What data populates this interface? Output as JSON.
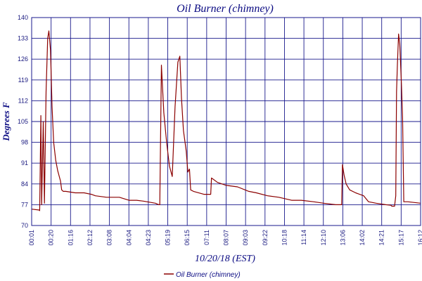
{
  "chart_data": {
    "type": "line",
    "title": "Oil Burner (chimney)",
    "xlabel": "10/20/18 (EST)",
    "ylabel": "Degrees F",
    "ylim": [
      70,
      140
    ],
    "yticks": [
      70,
      77,
      84,
      91,
      98,
      105,
      112,
      119,
      126,
      133,
      140
    ],
    "ytick_labels": [
      "70",
      "77",
      "84",
      "91",
      "98",
      "105",
      "112",
      "119",
      "126",
      "133",
      "140"
    ],
    "xtick_labels": [
      "00:01",
      "00:20",
      "01:16",
      "02:12",
      "03:08",
      "04:04",
      "04:23",
      "05:19",
      "06:15",
      "07:11",
      "08:07",
      "09:03",
      "09:22",
      "10:18",
      "11:14",
      "12:10",
      "13:06",
      "14:02",
      "14:21",
      "15:17",
      "16:12"
    ],
    "grid": true,
    "legend_position": "bottom",
    "colors": {
      "series": "#8b0000",
      "grid": "#1a1a8c",
      "text": "#0a0a82"
    },
    "series": [
      {
        "name": "Oil Burner (chimney)",
        "x": [
          "00:01",
          "00:20",
          "00:21",
          "00:24",
          "00:26",
          "00:30",
          "00:33",
          "00:37",
          "00:41",
          "00:44",
          "00:48",
          "00:52",
          "00:56",
          "01:01",
          "01:06",
          "01:09",
          "01:13",
          "01:16",
          "01:20",
          "01:26",
          "01:50",
          "02:12",
          "02:30",
          "02:40",
          "03:08",
          "03:40",
          "04:04",
          "04:23",
          "04:40",
          "05:10",
          "05:15",
          "05:19",
          "05:21",
          "05:25",
          "05:31",
          "05:38",
          "05:45",
          "05:52",
          "05:59",
          "06:06",
          "06:11",
          "06:15",
          "06:20",
          "06:27",
          "06:31",
          "06:35",
          "06:38",
          "06:45",
          "07:11",
          "07:28",
          "07:30",
          "07:45",
          "08:07",
          "08:35",
          "09:03",
          "09:22",
          "09:50",
          "10:18",
          "10:50",
          "11:14",
          "11:45",
          "12:10",
          "12:40",
          "12:55",
          "12:57",
          "13:01",
          "13:06",
          "13:15",
          "13:30",
          "13:50",
          "14:02",
          "14:21",
          "14:45",
          "14:58",
          "15:00",
          "15:07",
          "15:10",
          "15:12",
          "15:14",
          "15:17",
          "15:20",
          "15:24",
          "15:27",
          "15:30",
          "15:33",
          "15:40",
          "16:12"
        ],
        "values": [
          75.5,
          75.2,
          75.0,
          107.0,
          77.0,
          105.0,
          77.5,
          115.0,
          133.0,
          135.5,
          129.0,
          110.0,
          98.0,
          92.0,
          88.5,
          87.0,
          85.0,
          82.0,
          81.5,
          81.5,
          81.0,
          81.0,
          80.5,
          80.0,
          79.5,
          79.5,
          78.5,
          78.5,
          78.2,
          77.5,
          77.2,
          77.0,
          77.0,
          124.0,
          108.0,
          98.0,
          90.0,
          86.5,
          110.0,
          125.0,
          127.0,
          113.0,
          102.0,
          95.0,
          88.0,
          89.0,
          82.0,
          81.5,
          80.5,
          80.5,
          86.0,
          84.5,
          83.5,
          83.0,
          81.5,
          81.0,
          80.0,
          79.5,
          78.5,
          78.5,
          78.0,
          77.5,
          77.0,
          77.0,
          90.5,
          87.0,
          84.0,
          82.0,
          81.0,
          80.0,
          78.0,
          77.5,
          77.0,
          76.8,
          76.5,
          76.5,
          80.0,
          115.0,
          124.0,
          134.5,
          131.0,
          118.0,
          106.0,
          78.0,
          78.0,
          78.0,
          77.5
        ]
      }
    ]
  }
}
